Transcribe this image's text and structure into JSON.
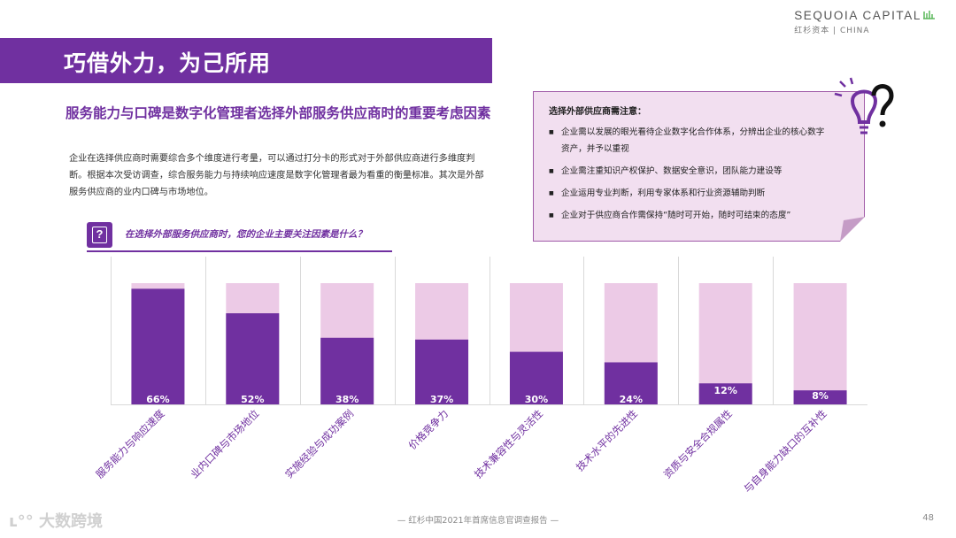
{
  "brand": {
    "name": "SEQUOIA CAPITAL",
    "sub": "红杉资本 | CHINA"
  },
  "header": {
    "title": "巧借外力，为己所用"
  },
  "subtitle": "服务能力与口碑是数字化管理者选择外部服务供应商时的重要考虑因素",
  "body": "企业在选择供应商时需要综合多个维度进行考量，可以通过打分卡的形式对于外部供应商进行多维度判断。根据本次受访调查，综合服务能力与持续响应速度是数字化管理者最为看重的衡量标准。其次是外部服务供应商的业内口碑与市场地位。",
  "question": {
    "icon": "question-icon",
    "text": "在选择外部服务供应商时，您的企业主要关注因素是什么？"
  },
  "note": {
    "title": "选择外部供应商需注意：",
    "items": [
      "企业需以发展的眼光看待企业数字化合作体系，分辨出企业的核心数字资产，并予以重视",
      "企业需注重知识产权保护、数据安全意识，团队能力建设等",
      "企业运用专业判断，利用专家体系和行业资源辅助判断",
      "企业对于供应商合作需保持“随时可开始，随时可结束的态度”"
    ]
  },
  "chart_data": {
    "type": "bar",
    "title": "在选择外部服务供应商时，您的企业主要关注因素是什么？",
    "categories": [
      "服务能力与响应速度",
      "业内口碑与市场地位",
      "实施经验与成功案例",
      "价格竞争力",
      "技术兼容性与灵活性",
      "技术水平的先进性",
      "资质与安全合规属性",
      "与自身能力缺口的互补性"
    ],
    "values": [
      66,
      52,
      38,
      37,
      30,
      24,
      12,
      8
    ],
    "labels": [
      "66%",
      "52%",
      "38%",
      "37%",
      "30%",
      "24%",
      "12%",
      "8%"
    ],
    "ylim": [
      0,
      100
    ],
    "xlabel": "",
    "ylabel": "",
    "colors": {
      "bar": "#7030a0",
      "track": "#eccae6",
      "grid": "#d9d9d9",
      "label": "#ffffff"
    }
  },
  "footer": {
    "watermark": "大数跨境",
    "report": "— 红杉中国2021年首席信息官调查报告 —",
    "page": "48"
  }
}
